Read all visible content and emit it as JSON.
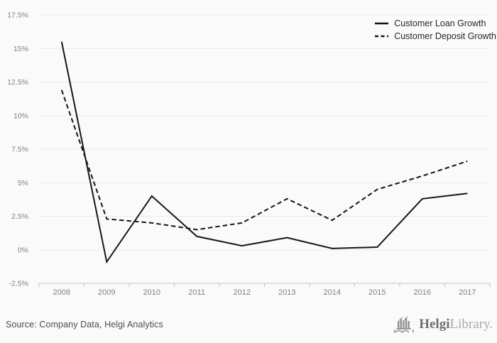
{
  "chart_data": {
    "type": "line",
    "title": "",
    "xlabel": "",
    "ylabel": "",
    "categories": [
      "2008",
      "2009",
      "2010",
      "2011",
      "2012",
      "2013",
      "2014",
      "2015",
      "2016",
      "2017"
    ],
    "series": [
      {
        "name": "Customer Loan Growth",
        "line_style": "solid",
        "values": [
          15.5,
          -0.9,
          4.0,
          1.0,
          0.3,
          0.9,
          0.1,
          0.2,
          3.8,
          4.2
        ]
      },
      {
        "name": "Customer Deposit Growth",
        "line_style": "dashed",
        "values": [
          11.9,
          2.3,
          2.0,
          1.5,
          2.0,
          3.8,
          2.2,
          4.5,
          5.5,
          6.6
        ]
      }
    ],
    "ylim": [
      -2.5,
      17.5
    ],
    "y_ticks": [
      {
        "value": 17.5,
        "label": "17.5%"
      },
      {
        "value": 15,
        "label": "15%"
      },
      {
        "value": 12.5,
        "label": "12.5%"
      },
      {
        "value": 10,
        "label": "10%"
      },
      {
        "value": 7.5,
        "label": "7.5%"
      },
      {
        "value": 5,
        "label": "5%"
      },
      {
        "value": 2.5,
        "label": "2.5%"
      },
      {
        "value": 0,
        "label": "0%"
      },
      {
        "value": -2.5,
        "label": "-2.5%"
      }
    ],
    "grid": true,
    "legend_position": "top-right",
    "colors": {
      "line": "#161616",
      "grid": "#e9e9e9",
      "axis": "#b9c1d3",
      "tick_label": "#808080",
      "legend_text": "#262626",
      "background": "#fafafa"
    }
  },
  "footer": {
    "source": "Source: Company Data, Helgi Analytics",
    "logo_primary": "Helgi",
    "logo_secondary": "Library."
  }
}
